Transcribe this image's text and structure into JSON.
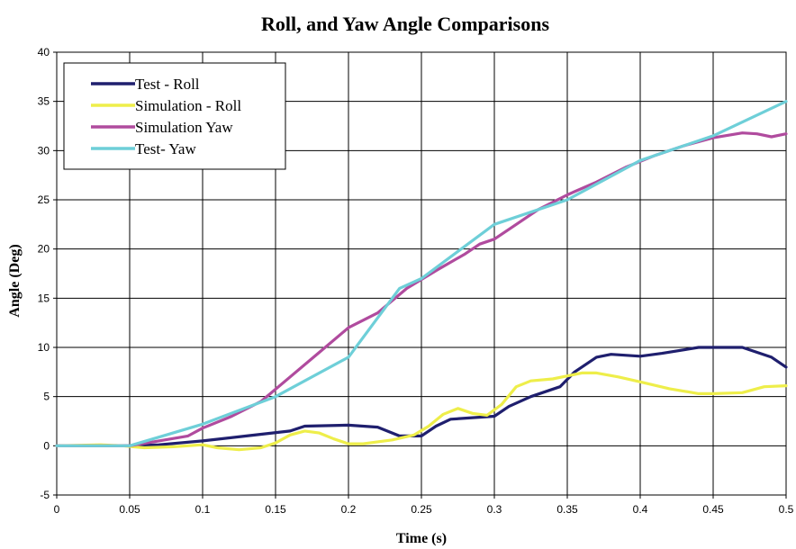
{
  "chart_data": {
    "type": "line",
    "title": "Roll, and Yaw Angle Comparisons",
    "xlabel": "Time (s)",
    "ylabel": "Angle (Deg)",
    "xlim": [
      0,
      0.5
    ],
    "ylim": [
      -5,
      40
    ],
    "x_ticks": [
      "0",
      "0.05",
      "0.1",
      "0.15",
      "0.2",
      "0.25",
      "0.3",
      "0.35",
      "0.4",
      "0.45",
      "0.5"
    ],
    "y_ticks": [
      "-5",
      "0",
      "5",
      "10",
      "15",
      "20",
      "25",
      "30",
      "35",
      "40"
    ],
    "grid": true,
    "legend_position": "top-left",
    "series": [
      {
        "name": "Test - Roll",
        "color": "#1f1f6e",
        "points": [
          [
            0,
            0
          ],
          [
            0.05,
            0
          ],
          [
            0.07,
            0.1
          ],
          [
            0.1,
            0.5
          ],
          [
            0.13,
            1.0
          ],
          [
            0.16,
            1.5
          ],
          [
            0.17,
            2.0
          ],
          [
            0.2,
            2.1
          ],
          [
            0.22,
            1.9
          ],
          [
            0.235,
            1.0
          ],
          [
            0.25,
            1.0
          ],
          [
            0.26,
            2.0
          ],
          [
            0.27,
            2.7
          ],
          [
            0.3,
            3.0
          ],
          [
            0.31,
            4.0
          ],
          [
            0.325,
            5.0
          ],
          [
            0.345,
            6.0
          ],
          [
            0.355,
            7.5
          ],
          [
            0.37,
            9.0
          ],
          [
            0.38,
            9.3
          ],
          [
            0.4,
            9.1
          ],
          [
            0.415,
            9.4
          ],
          [
            0.44,
            10.0
          ],
          [
            0.47,
            10.0
          ],
          [
            0.49,
            9.0
          ],
          [
            0.5,
            8.0
          ]
        ]
      },
      {
        "name": "Simulation - Roll",
        "color": "#eeee4a",
        "points": [
          [
            0,
            0
          ],
          [
            0.03,
            0.1
          ],
          [
            0.045,
            0
          ],
          [
            0.06,
            -0.2
          ],
          [
            0.08,
            -0.1
          ],
          [
            0.1,
            0.1
          ],
          [
            0.11,
            -0.2
          ],
          [
            0.125,
            -0.4
          ],
          [
            0.14,
            -0.2
          ],
          [
            0.15,
            0.3
          ],
          [
            0.16,
            1.1
          ],
          [
            0.17,
            1.5
          ],
          [
            0.18,
            1.3
          ],
          [
            0.19,
            0.7
          ],
          [
            0.2,
            0.2
          ],
          [
            0.21,
            0.2
          ],
          [
            0.23,
            0.6
          ],
          [
            0.245,
            1.1
          ],
          [
            0.255,
            2.0
          ],
          [
            0.265,
            3.2
          ],
          [
            0.275,
            3.8
          ],
          [
            0.285,
            3.3
          ],
          [
            0.295,
            3.1
          ],
          [
            0.305,
            4.2
          ],
          [
            0.315,
            6.0
          ],
          [
            0.325,
            6.6
          ],
          [
            0.34,
            6.8
          ],
          [
            0.36,
            7.4
          ],
          [
            0.37,
            7.4
          ],
          [
            0.385,
            7.0
          ],
          [
            0.4,
            6.5
          ],
          [
            0.42,
            5.8
          ],
          [
            0.44,
            5.3
          ],
          [
            0.45,
            5.3
          ],
          [
            0.47,
            5.4
          ],
          [
            0.485,
            6.0
          ],
          [
            0.5,
            6.1
          ]
        ]
      },
      {
        "name": "Simulation Yaw",
        "color": "#b04b9e",
        "points": [
          [
            0,
            0
          ],
          [
            0.04,
            0
          ],
          [
            0.05,
            0
          ],
          [
            0.07,
            0.5
          ],
          [
            0.09,
            1.0
          ],
          [
            0.1,
            1.8
          ],
          [
            0.12,
            3.0
          ],
          [
            0.14,
            4.5
          ],
          [
            0.16,
            7.0
          ],
          [
            0.18,
            9.5
          ],
          [
            0.2,
            12.0
          ],
          [
            0.22,
            13.5
          ],
          [
            0.24,
            16.0
          ],
          [
            0.26,
            17.8
          ],
          [
            0.28,
            19.5
          ],
          [
            0.29,
            20.5
          ],
          [
            0.3,
            21.0
          ],
          [
            0.31,
            22.0
          ],
          [
            0.33,
            24.0
          ],
          [
            0.35,
            25.5
          ],
          [
            0.37,
            26.8
          ],
          [
            0.39,
            28.3
          ],
          [
            0.41,
            29.5
          ],
          [
            0.43,
            30.5
          ],
          [
            0.45,
            31.3
          ],
          [
            0.47,
            31.8
          ],
          [
            0.48,
            31.7
          ],
          [
            0.49,
            31.4
          ],
          [
            0.5,
            31.7
          ]
        ]
      },
      {
        "name": "Test- Yaw",
        "color": "#6ecfd8",
        "points": [
          [
            0,
            0
          ],
          [
            0.05,
            0
          ],
          [
            0.1,
            2.2
          ],
          [
            0.15,
            5.0
          ],
          [
            0.2,
            9.0
          ],
          [
            0.235,
            16.0
          ],
          [
            0.25,
            17.0
          ],
          [
            0.3,
            22.5
          ],
          [
            0.35,
            25.0
          ],
          [
            0.4,
            29.0
          ],
          [
            0.45,
            31.5
          ],
          [
            0.5,
            35.0
          ]
        ]
      }
    ]
  }
}
